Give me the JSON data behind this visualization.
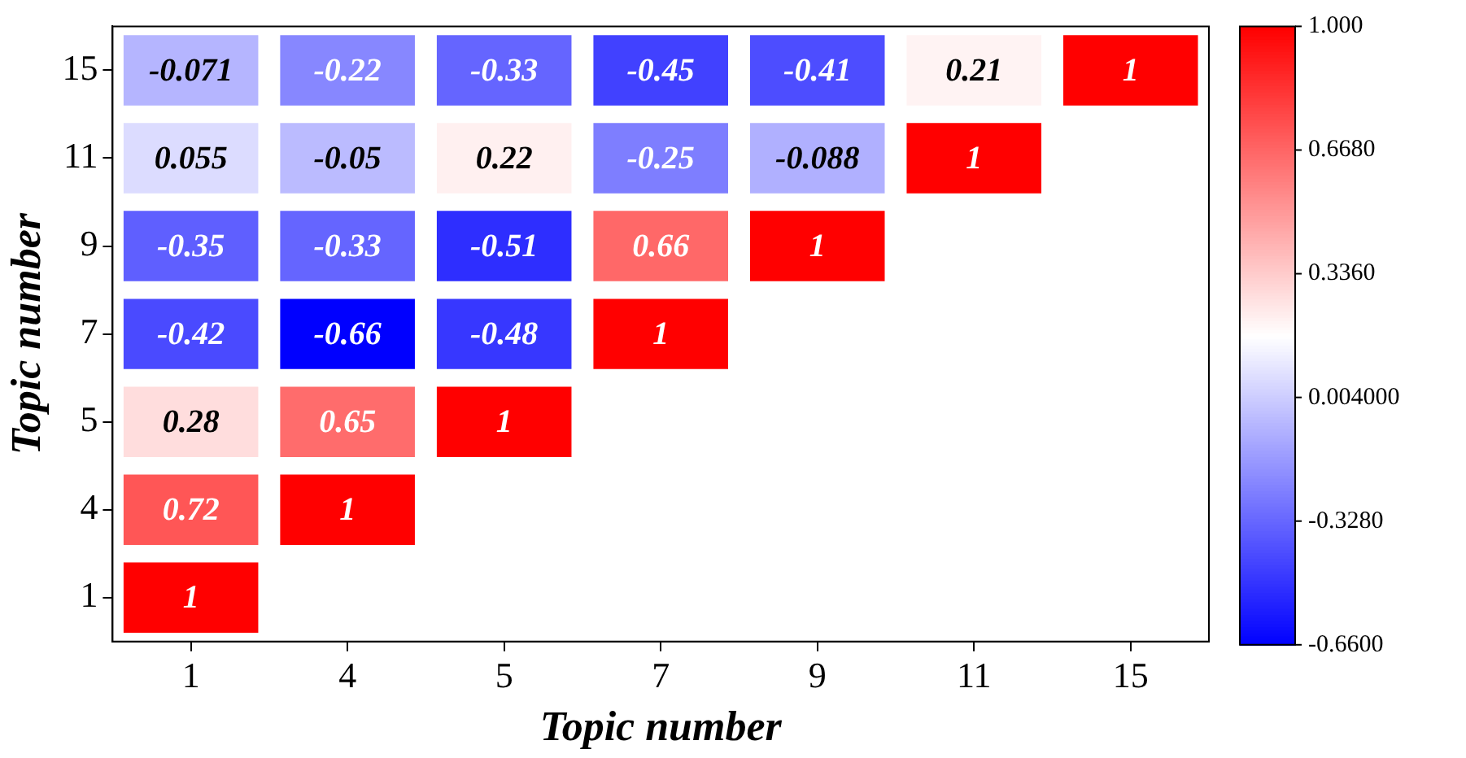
{
  "chart_data": {
    "type": "heatmap",
    "xlabel": "Topic number",
    "ylabel": "Topic number",
    "categories": [
      "1",
      "4",
      "5",
      "7",
      "9",
      "11",
      "15"
    ],
    "y_categories": [
      "15",
      "11",
      "9",
      "7",
      "5",
      "4",
      "1"
    ],
    "cells": [
      [
        -0.071,
        -0.22,
        -0.33,
        -0.45,
        -0.41,
        0.21,
        1
      ],
      [
        0.055,
        -0.05,
        0.22,
        -0.25,
        -0.088,
        1,
        null
      ],
      [
        -0.35,
        -0.33,
        -0.51,
        0.66,
        1,
        null,
        null
      ],
      [
        -0.42,
        -0.66,
        -0.48,
        1,
        null,
        null,
        null
      ],
      [
        0.28,
        0.65,
        1,
        null,
        null,
        null,
        null
      ],
      [
        0.72,
        1,
        null,
        null,
        null,
        null,
        null
      ],
      [
        1,
        null,
        null,
        null,
        null,
        null,
        null
      ]
    ],
    "data_labels": true,
    "clim": [
      -0.66,
      1
    ],
    "cticks": [
      {
        "value": 1,
        "label": "1.000"
      },
      {
        "value": 0.668,
        "label": "0.6680"
      },
      {
        "value": 0.336,
        "label": "0.3360"
      },
      {
        "value": 0.004,
        "label": "0.004000"
      },
      {
        "value": -0.328,
        "label": "-0.3280"
      },
      {
        "value": -0.66,
        "label": "-0.6600"
      }
    ],
    "grid": false
  }
}
